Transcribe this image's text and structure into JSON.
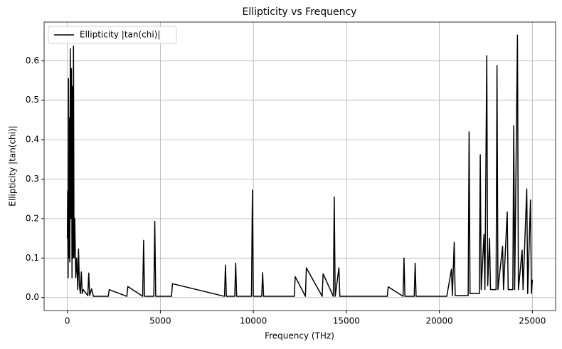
{
  "chart_data": {
    "type": "line",
    "title": "Ellipticity vs Frequency",
    "x_label": "Frequency (THz)",
    "y_label": "Ellipticity |tan(chi)|",
    "x": [
      0,
      20,
      40,
      60,
      80,
      100,
      130,
      160,
      190,
      220,
      250,
      280,
      300,
      330,
      360,
      400,
      450,
      500,
      560,
      600,
      650,
      700,
      750,
      800,
      850,
      1100,
      1150,
      1200,
      1300,
      1400,
      2200,
      2250,
      3200,
      3250,
      4050,
      4100,
      4150,
      4650,
      4700,
      4750,
      5600,
      5650,
      8450,
      8500,
      8550,
      9000,
      9050,
      9100,
      9900,
      9950,
      10000,
      10450,
      10500,
      10550,
      12200,
      12250,
      12800,
      12850,
      13700,
      13750,
      14300,
      14350,
      14400,
      14600,
      14650,
      16000,
      17200,
      17250,
      18050,
      18100,
      18150,
      18650,
      18700,
      18750,
      20400,
      20500,
      20650,
      20700,
      20800,
      20850,
      21550,
      21600,
      21650,
      22150,
      22200,
      22250,
      22400,
      22450,
      22550,
      22600,
      22700,
      22750,
      23050,
      23100,
      23150,
      23400,
      23450,
      23650,
      23700,
      23950,
      24000,
      24050,
      24200,
      24250,
      24450,
      24500,
      24700,
      24750,
      24900,
      24950,
      25000
    ],
    "series": [
      {
        "name": "Ellipticity |tan(chi)|",
        "color": "#000000",
        "values": [
          0.15,
          0.27,
          0.05,
          0.555,
          0.1,
          0.455,
          0.09,
          0.63,
          0.2,
          0.58,
          0.05,
          0.535,
          0.1,
          0.637,
          0.1,
          0.2,
          0.05,
          0.1,
          0.02,
          0.123,
          0.03,
          0.01,
          0.065,
          0.01,
          0.02,
          0.005,
          0.062,
          0.005,
          0.022,
          0.003,
          0.003,
          0.02,
          0.003,
          0.028,
          0.003,
          0.145,
          0.003,
          0.003,
          0.193,
          0.003,
          0.003,
          0.035,
          0.003,
          0.082,
          0.003,
          0.003,
          0.087,
          0.003,
          0.003,
          0.272,
          0.003,
          0.003,
          0.063,
          0.003,
          0.003,
          0.053,
          0.003,
          0.075,
          0.003,
          0.06,
          0.003,
          0.255,
          0.003,
          0.075,
          0.003,
          0.003,
          0.003,
          0.027,
          0.003,
          0.1,
          0.003,
          0.003,
          0.087,
          0.003,
          0.003,
          0.03,
          0.072,
          0.005,
          0.14,
          0.005,
          0.005,
          0.42,
          0.01,
          0.01,
          0.362,
          0.02,
          0.16,
          0.02,
          0.613,
          0.03,
          0.15,
          0.02,
          0.02,
          0.588,
          0.02,
          0.13,
          0.02,
          0.217,
          0.02,
          0.02,
          0.435,
          0.02,
          0.665,
          0.02,
          0.12,
          0.02,
          0.275,
          0.01,
          0.247,
          0.01,
          0.045
        ]
      }
    ],
    "xlim": [
      -1250,
      26250
    ],
    "xticks": [
      0,
      5000,
      10000,
      15000,
      20000,
      25000
    ],
    "ylim": [
      -0.033,
      0.698
    ],
    "yticks": [
      {
        "value": 0,
        "label": "0.0"
      },
      0.1,
      0.2,
      0.3,
      0.4,
      0.5,
      0.6
    ],
    "grid": true,
    "legend": "upper-left"
  }
}
